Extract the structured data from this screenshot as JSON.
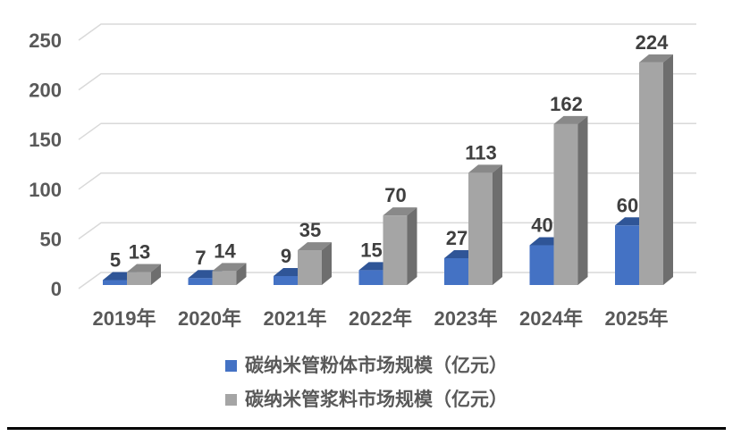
{
  "chart_data": {
    "type": "bar",
    "variant": "3d-clustered-column",
    "title": "",
    "categories": [
      "2019年",
      "2020年",
      "2021年",
      "2022年",
      "2023年",
      "2024年",
      "2025年"
    ],
    "series": [
      {
        "name": "碳纳米管粉体市场规模（亿元）",
        "color": "#4472c4",
        "color_top": "#2f5597",
        "color_side": "#2a4a87",
        "values": [
          5,
          7,
          9,
          15,
          27,
          40,
          60
        ]
      },
      {
        "name": "碳纳米管浆料市场规模（亿元）",
        "color": "#a5a5a5",
        "color_top": "#898989",
        "color_side": "#6e6e6e",
        "values": [
          13,
          14,
          35,
          70,
          113,
          162,
          224
        ]
      }
    ],
    "y_ticks": [
      0,
      50,
      100,
      150,
      200,
      250
    ],
    "ylim": [
      0,
      250
    ],
    "grid": true,
    "data_labels": true,
    "legend_position": "bottom",
    "style": {
      "grid_color": "#d9d9d9",
      "axis_label_color": "#595959",
      "data_label_color": "#3f3f3f",
      "background": "#ffffff",
      "divider_color": "#000000"
    }
  }
}
